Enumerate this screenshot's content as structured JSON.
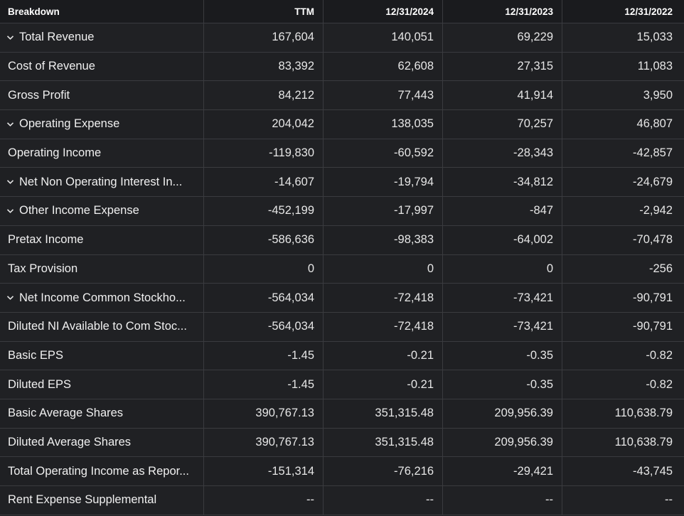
{
  "header": {
    "breakdown": "Breakdown",
    "columns": [
      "TTM",
      "12/31/2024",
      "12/31/2023",
      "12/31/2022"
    ]
  },
  "rows": [
    {
      "label": "Total Revenue",
      "expandable": true,
      "values": [
        "167,604",
        "140,051",
        "69,229",
        "15,033"
      ]
    },
    {
      "label": "Cost of Revenue",
      "expandable": false,
      "values": [
        "83,392",
        "62,608",
        "27,315",
        "11,083"
      ]
    },
    {
      "label": "Gross Profit",
      "expandable": false,
      "values": [
        "84,212",
        "77,443",
        "41,914",
        "3,950"
      ]
    },
    {
      "label": "Operating Expense",
      "expandable": true,
      "values": [
        "204,042",
        "138,035",
        "70,257",
        "46,807"
      ]
    },
    {
      "label": "Operating Income",
      "expandable": false,
      "values": [
        "-119,830",
        "-60,592",
        "-28,343",
        "-42,857"
      ]
    },
    {
      "label": "Net Non Operating Interest In...",
      "expandable": true,
      "values": [
        "-14,607",
        "-19,794",
        "-34,812",
        "-24,679"
      ]
    },
    {
      "label": "Other Income Expense",
      "expandable": true,
      "values": [
        "-452,199",
        "-17,997",
        "-847",
        "-2,942"
      ]
    },
    {
      "label": "Pretax Income",
      "expandable": false,
      "values": [
        "-586,636",
        "-98,383",
        "-64,002",
        "-70,478"
      ]
    },
    {
      "label": "Tax Provision",
      "expandable": false,
      "values": [
        "0",
        "0",
        "0",
        "-256"
      ]
    },
    {
      "label": "Net Income Common Stockho...",
      "expandable": true,
      "values": [
        "-564,034",
        "-72,418",
        "-73,421",
        "-90,791"
      ]
    },
    {
      "label": "Diluted NI Available to Com Stoc...",
      "expandable": false,
      "values": [
        "-564,034",
        "-72,418",
        "-73,421",
        "-90,791"
      ]
    },
    {
      "label": "Basic EPS",
      "expandable": false,
      "values": [
        "-1.45",
        "-0.21",
        "-0.35",
        "-0.82"
      ]
    },
    {
      "label": "Diluted EPS",
      "expandable": false,
      "values": [
        "-1.45",
        "-0.21",
        "-0.35",
        "-0.82"
      ]
    },
    {
      "label": "Basic Average Shares",
      "expandable": false,
      "values": [
        "390,767.13",
        "351,315.48",
        "209,956.39",
        "110,638.79"
      ]
    },
    {
      "label": "Diluted Average Shares",
      "expandable": false,
      "values": [
        "390,767.13",
        "351,315.48",
        "209,956.39",
        "110,638.79"
      ]
    },
    {
      "label": "Total Operating Income as Repor...",
      "expandable": false,
      "values": [
        "-151,314",
        "-76,216",
        "-29,421",
        "-43,745"
      ]
    },
    {
      "label": "Rent Expense Supplemental",
      "expandable": false,
      "values": [
        "--",
        "--",
        "--",
        "--"
      ]
    }
  ],
  "icons": {
    "expand": "chevron-down-icon"
  },
  "colors": {
    "background": "#1f2023",
    "header_background": "#1a1b1e",
    "grid": "#3a3b3f",
    "text": "#e6e6e6"
  }
}
